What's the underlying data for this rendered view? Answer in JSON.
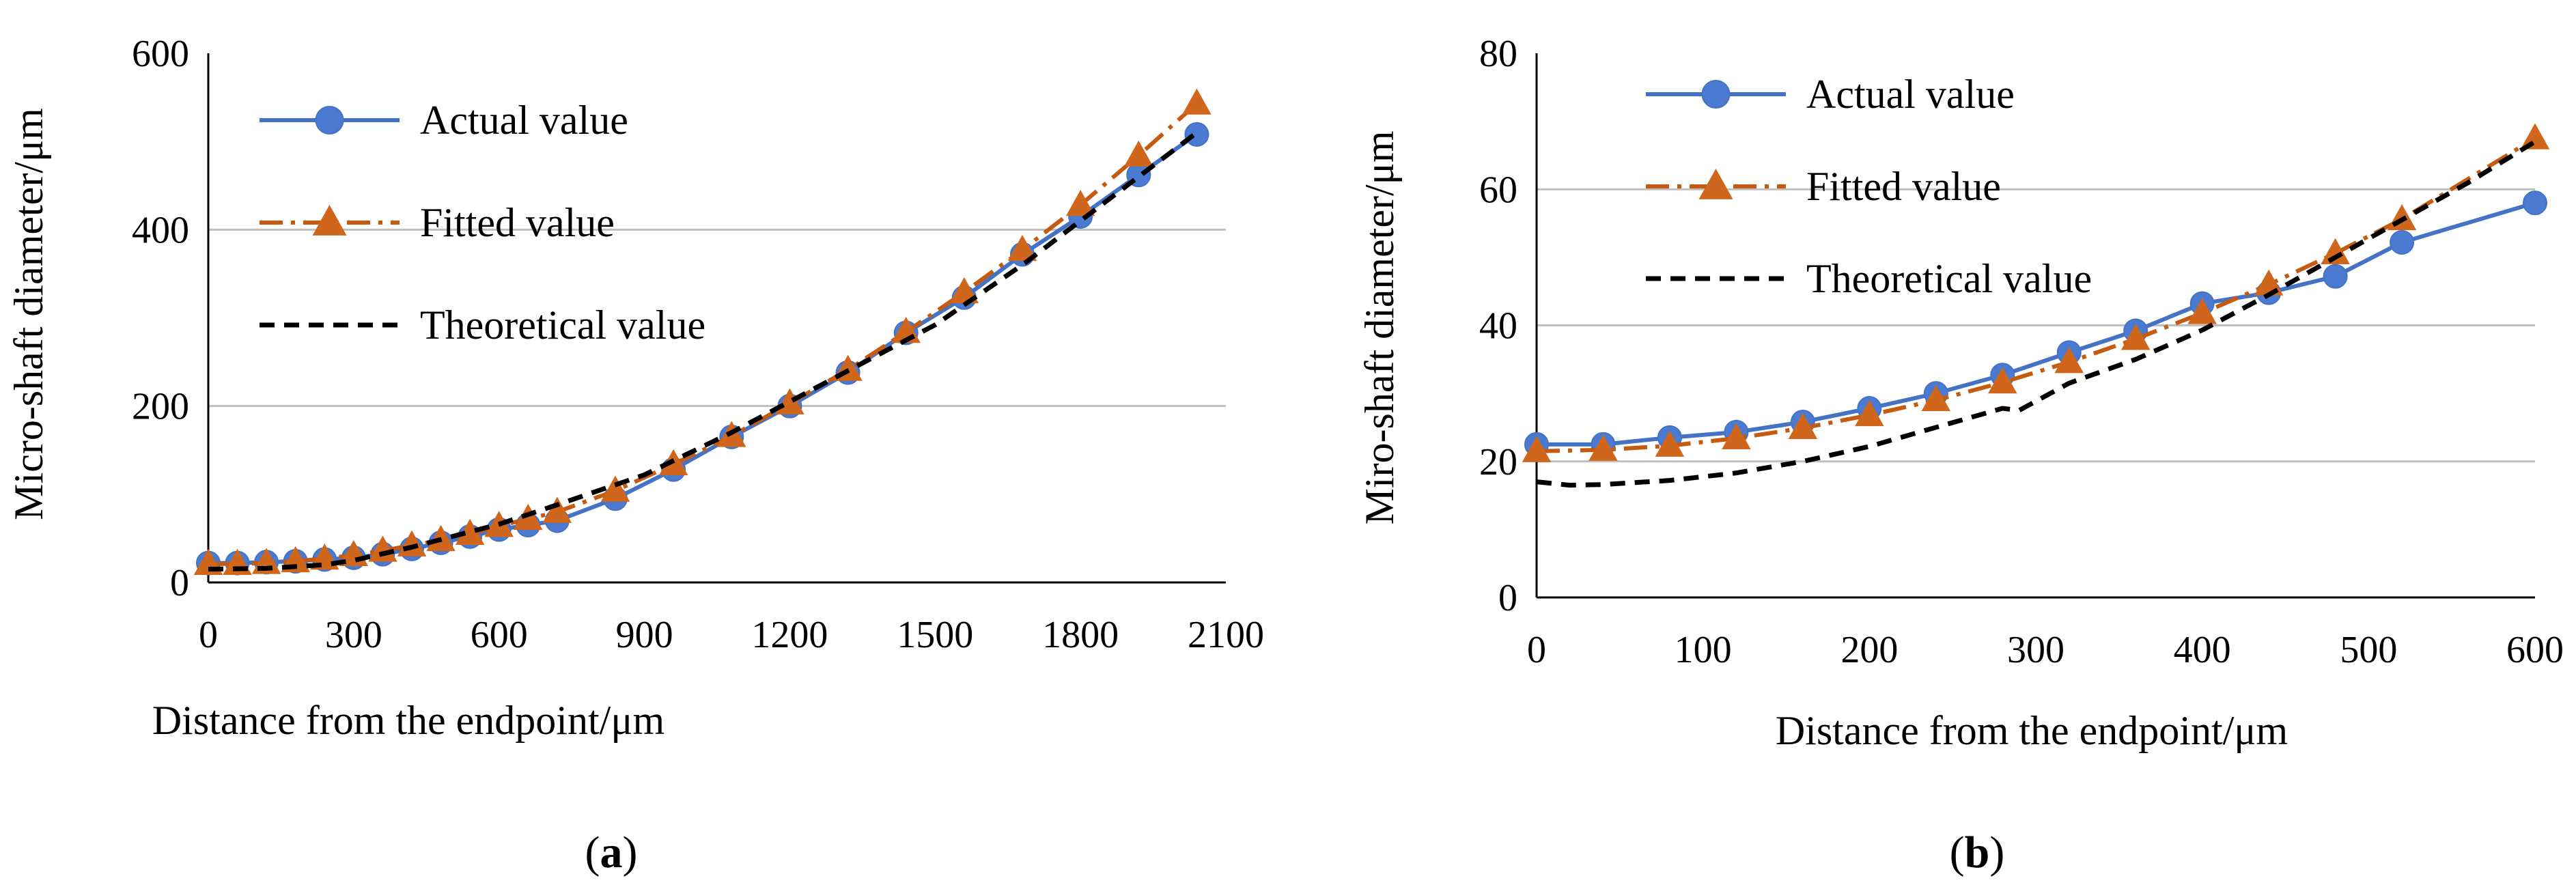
{
  "colors": {
    "actual": "#4472C4",
    "actual_marker": "#4A7BD0",
    "fitted": "#C55A11",
    "fitted_marker": "#D0661C",
    "theoretical": "#000000",
    "grid": "#BFBFBF"
  },
  "chart_data": [
    {
      "panel": "a",
      "panel_label": "a",
      "type": "line",
      "xlabel": "Distance from the endpoint/μm",
      "ylabel": "Micro-shaft diameter/μm",
      "xlim": [
        0,
        2100
      ],
      "ylim": [
        0,
        600
      ],
      "xticks": [
        "0",
        "300",
        "600",
        "900",
        "1200",
        "1500",
        "1800",
        "2100"
      ],
      "yticks": [
        "0",
        "200",
        "400",
        "600"
      ],
      "grid": "horizontal",
      "legend_position": "top-left",
      "series": [
        {
          "name": "Actual value",
          "style": "solid-circle",
          "x": [
            0,
            60,
            120,
            180,
            240,
            300,
            360,
            420,
            480,
            540,
            600,
            660,
            720,
            840,
            960,
            1080,
            1200,
            1320,
            1440,
            1560,
            1680,
            1800,
            1920,
            2040
          ],
          "y": [
            22,
            22,
            23,
            24,
            26,
            28,
            32,
            38,
            45,
            52,
            60,
            65,
            70,
            95,
            128,
            165,
            200,
            238,
            283,
            323,
            372,
            415,
            462,
            508
          ]
        },
        {
          "name": "Fitted value",
          "style": "dashdot-triangle",
          "x": [
            0,
            60,
            120,
            180,
            240,
            300,
            360,
            420,
            480,
            540,
            600,
            660,
            720,
            840,
            960,
            1080,
            1200,
            1320,
            1440,
            1560,
            1680,
            1800,
            1920,
            2040
          ],
          "y": [
            21,
            21,
            22,
            24,
            27,
            31,
            36,
            42,
            48,
            55,
            64,
            72,
            80,
            104,
            134,
            166,
            203,
            241,
            284,
            329,
            377,
            428,
            484,
            543
          ]
        },
        {
          "name": "Theoretical value",
          "style": "dashed",
          "x": [
            0,
            120,
            240,
            300,
            420,
            600,
            720,
            900,
            1080,
            1200,
            1320,
            1500,
            1680,
            1800,
            1920,
            2040
          ],
          "y": [
            15,
            16,
            20,
            25,
            40,
            66,
            88,
            122,
            170,
            205,
            240,
            292,
            360,
            410,
            460,
            510
          ]
        }
      ]
    },
    {
      "panel": "b",
      "panel_label": "b",
      "type": "line",
      "xlabel": "Distance from the endpoint/μm",
      "ylabel": "Miro-shaft diameter/μm",
      "xlim": [
        0,
        600
      ],
      "ylim": [
        0,
        80
      ],
      "xticks": [
        "0",
        "100",
        "200",
        "300",
        "400",
        "500",
        "600"
      ],
      "yticks": [
        "0",
        "20",
        "40",
        "60",
        "80"
      ],
      "grid": "horizontal",
      "legend_position": "top-left",
      "series": [
        {
          "name": "Actual value",
          "style": "solid-circle",
          "x": [
            0,
            40,
            80,
            120,
            160,
            200,
            240,
            280,
            320,
            360,
            400,
            440,
            480,
            520,
            600
          ],
          "y": [
            22.5,
            22.5,
            23.5,
            24.3,
            25.8,
            27.8,
            30,
            32.7,
            36,
            39.2,
            43.2,
            44.8,
            47.2,
            52.2,
            58
          ]
        },
        {
          "name": "Fitted value",
          "style": "dashdot-triangle",
          "x": [
            0,
            40,
            80,
            120,
            160,
            200,
            240,
            280,
            320,
            360,
            400,
            440,
            480,
            520,
            600
          ],
          "y": [
            21.5,
            21.7,
            22.3,
            23.4,
            24.9,
            26.8,
            29,
            31.6,
            34.6,
            38,
            41.8,
            46,
            50.6,
            55.6,
            67.5
          ]
        },
        {
          "name": "Theoretical value",
          "style": "dashed",
          "x": [
            0,
            20,
            40,
            80,
            120,
            160,
            200,
            240,
            280,
            290,
            320,
            360,
            400,
            440,
            480,
            520,
            560,
            600
          ],
          "y": [
            17,
            16.5,
            16.6,
            17.2,
            18.3,
            20,
            22.2,
            25,
            27.8,
            27.5,
            31.5,
            35,
            39.3,
            44.5,
            50,
            55.5,
            61,
            67
          ]
        }
      ]
    }
  ]
}
